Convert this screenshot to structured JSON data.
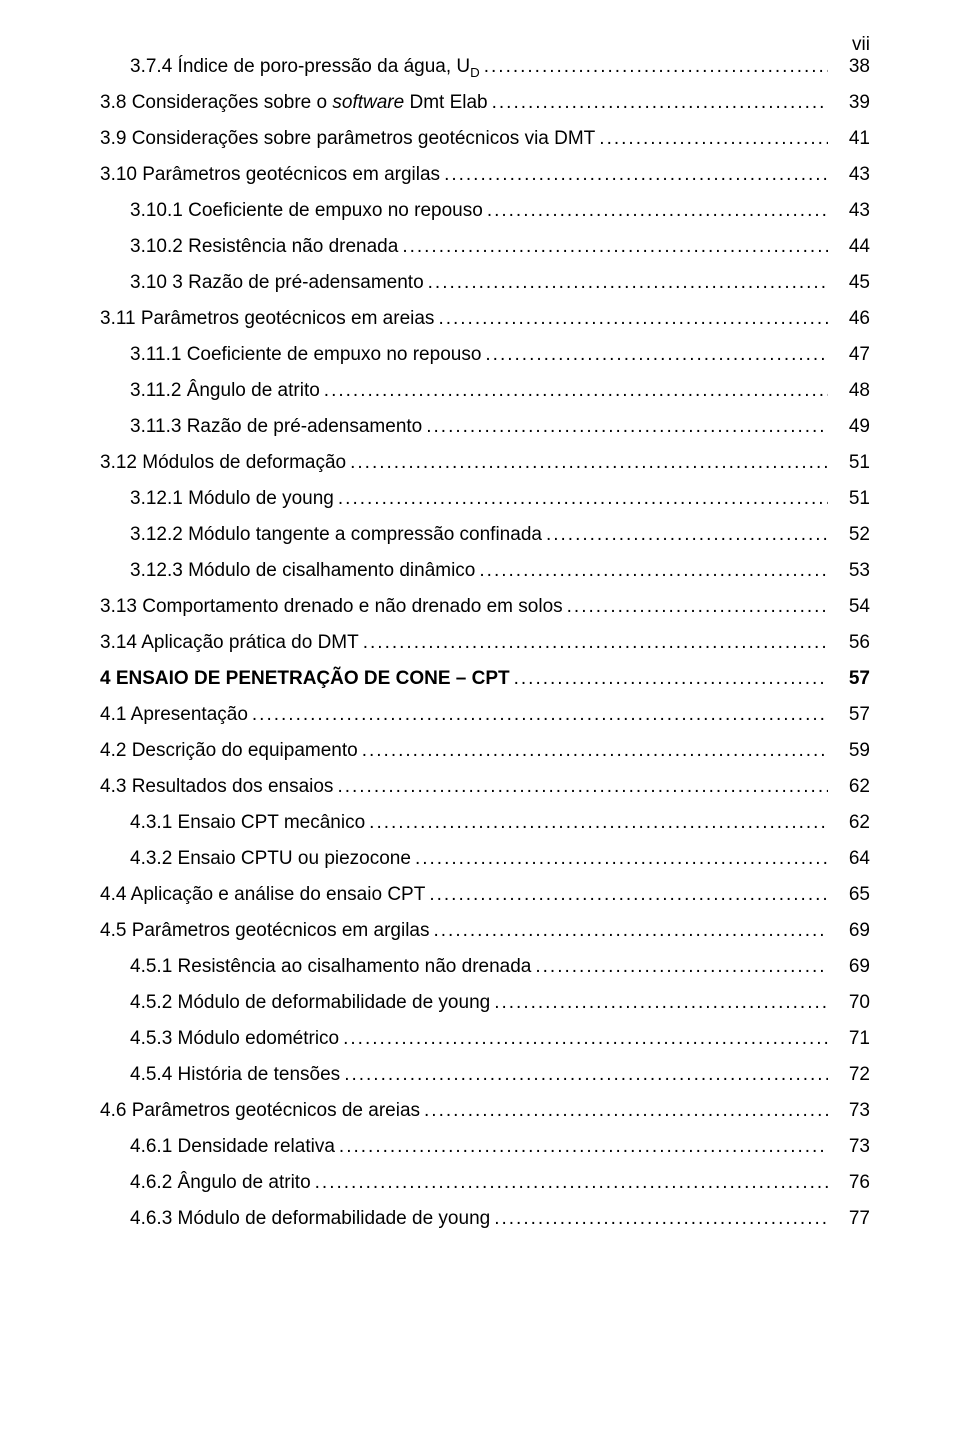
{
  "page_number_label": "vii",
  "entries": [
    {
      "indent": 1,
      "segments": [
        {
          "text": "3.7.4 Índice de poro-pressão da água, U"
        },
        {
          "text": "D",
          "sub": true
        }
      ],
      "page": "38"
    },
    {
      "indent": 0,
      "segments": [
        {
          "text": "3.8 Considerações sobre o "
        },
        {
          "text": "software",
          "italic": true
        },
        {
          "text": " Dmt Elab"
        }
      ],
      "page": "39"
    },
    {
      "indent": 0,
      "segments": [
        {
          "text": "3.9 Considerações sobre parâmetros geotécnicos via DMT"
        }
      ],
      "page": "41"
    },
    {
      "indent": 0,
      "segments": [
        {
          "text": "3.10 Parâmetros geotécnicos em argilas"
        }
      ],
      "page": "43"
    },
    {
      "indent": 1,
      "segments": [
        {
          "text": "3.10.1 Coeficiente de empuxo no repouso"
        }
      ],
      "page": "43"
    },
    {
      "indent": 1,
      "segments": [
        {
          "text": "3.10.2 Resistência não drenada"
        }
      ],
      "page": "44"
    },
    {
      "indent": 1,
      "segments": [
        {
          "text": "3.10 3 Razão de pré-adensamento"
        }
      ],
      "page": "45"
    },
    {
      "indent": 0,
      "segments": [
        {
          "text": "3.11 Parâmetros geotécnicos em areias"
        }
      ],
      "page": "46"
    },
    {
      "indent": 1,
      "segments": [
        {
          "text": "3.11.1 Coeficiente de empuxo no repouso"
        }
      ],
      "page": "47"
    },
    {
      "indent": 1,
      "segments": [
        {
          "text": "3.11.2 Ângulo de atrito"
        }
      ],
      "page": "48"
    },
    {
      "indent": 1,
      "segments": [
        {
          "text": "3.11.3 Razão de pré-adensamento"
        }
      ],
      "page": "49"
    },
    {
      "indent": 0,
      "segments": [
        {
          "text": "3.12 Módulos de deformação"
        }
      ],
      "page": "51"
    },
    {
      "indent": 1,
      "segments": [
        {
          "text": "3.12.1 Módulo de young"
        }
      ],
      "page": "51"
    },
    {
      "indent": 1,
      "segments": [
        {
          "text": "3.12.2 Módulo tangente a compressão confinada"
        }
      ],
      "page": "52"
    },
    {
      "indent": 1,
      "segments": [
        {
          "text": "3.12.3 Módulo de cisalhamento dinâmico"
        }
      ],
      "page": "53"
    },
    {
      "indent": 0,
      "segments": [
        {
          "text": "3.13 Comportamento drenado e não drenado em solos"
        }
      ],
      "page": "54"
    },
    {
      "indent": 0,
      "segments": [
        {
          "text": "3.14 Aplicação prática do DMT"
        }
      ],
      "page": "56"
    },
    {
      "indent": 0,
      "bold": true,
      "segments": [
        {
          "text": "4 ENSAIO DE PENETRAÇÃO DE CONE – CPT"
        }
      ],
      "page": "57"
    },
    {
      "indent": 0,
      "segments": [
        {
          "text": "4.1 Apresentação"
        }
      ],
      "page": "57"
    },
    {
      "indent": 0,
      "segments": [
        {
          "text": "4.2 Descrição do equipamento"
        }
      ],
      "page": "59"
    },
    {
      "indent": 0,
      "segments": [
        {
          "text": "4.3 Resultados dos ensaios"
        }
      ],
      "page": "62"
    },
    {
      "indent": 1,
      "segments": [
        {
          "text": "4.3.1 Ensaio CPT mecânico"
        }
      ],
      "page": "62"
    },
    {
      "indent": 1,
      "segments": [
        {
          "text": "4.3.2 Ensaio CPTU ou piezocone"
        }
      ],
      "page": "64"
    },
    {
      "indent": 0,
      "segments": [
        {
          "text": "4.4 Aplicação e análise do ensaio CPT"
        }
      ],
      "page": "65"
    },
    {
      "indent": 0,
      "segments": [
        {
          "text": "4.5 Parâmetros geotécnicos em argilas"
        }
      ],
      "page": "69"
    },
    {
      "indent": 1,
      "segments": [
        {
          "text": "4.5.1 Resistência ao cisalhamento não drenada"
        }
      ],
      "page": "69"
    },
    {
      "indent": 1,
      "segments": [
        {
          "text": "4.5.2 Módulo de deformabilidade de young"
        }
      ],
      "page": "70"
    },
    {
      "indent": 1,
      "segments": [
        {
          "text": "4.5.3 Módulo edométrico"
        }
      ],
      "page": "71"
    },
    {
      "indent": 1,
      "segments": [
        {
          "text": "4.5.4 História de tensões"
        }
      ],
      "page": "72"
    },
    {
      "indent": 0,
      "segments": [
        {
          "text": "4.6 Parâmetros geotécnicos de areias"
        }
      ],
      "page": "73"
    },
    {
      "indent": 1,
      "segments": [
        {
          "text": "4.6.1 Densidade relativa"
        }
      ],
      "page": "73"
    },
    {
      "indent": 1,
      "segments": [
        {
          "text": "4.6.2 Ângulo de atrito"
        }
      ],
      "page": "76"
    },
    {
      "indent": 1,
      "segments": [
        {
          "text": "4.6.3 Módulo de deformabilidade de young"
        }
      ],
      "page": "77"
    }
  ]
}
